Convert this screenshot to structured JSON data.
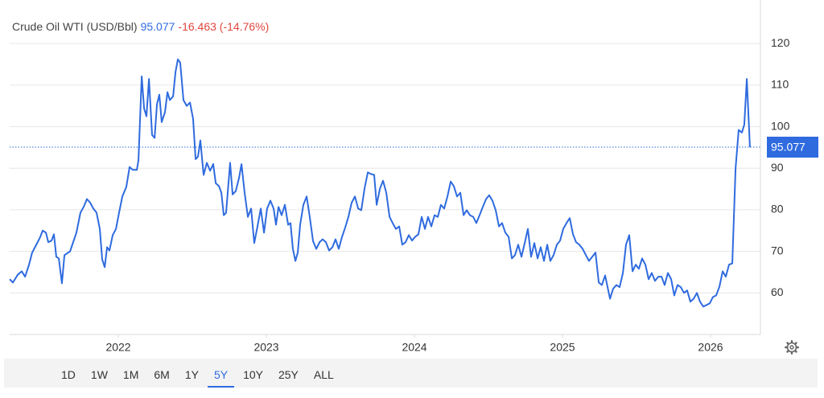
{
  "chart_data": {
    "type": "line",
    "header": {
      "name": "Crude Oil WTI (USD/Bbl)",
      "change": "-16.463 (-14.76%)"
    },
    "x": [
      2021.266,
      2021.288,
      2021.321,
      2021.348,
      2021.37,
      2021.397,
      2021.418,
      2021.446,
      2021.473,
      2021.489,
      2021.511,
      2021.527,
      2021.549,
      2021.565,
      2021.581,
      2021.598,
      2021.619,
      2021.636,
      2021.674,
      2021.717,
      2021.744,
      2021.766,
      2021.788,
      2021.81,
      2021.831,
      2021.853,
      2021.875,
      2021.891,
      2021.908,
      2021.924,
      2021.94,
      2021.962,
      2021.984,
      2022.005,
      2022.027,
      2022.054,
      2022.076,
      2022.098,
      2022.125,
      2022.136,
      2022.158,
      2022.174,
      2022.19,
      2022.207,
      2022.228,
      2022.245,
      2022.261,
      2022.277,
      2022.293,
      2022.315,
      2022.332,
      2022.348,
      2022.37,
      2022.386,
      2022.402,
      2022.418,
      2022.44,
      2022.462,
      2022.484,
      2022.505,
      2022.522,
      2022.538,
      2022.554,
      2022.576,
      2022.598,
      2022.62,
      2022.641,
      2022.658,
      2022.68,
      2022.696,
      2022.712,
      2022.728,
      2022.755,
      2022.772,
      2022.793,
      2022.815,
      2022.832,
      2022.853,
      2022.875,
      2022.897,
      2022.918,
      2022.94,
      2022.962,
      2022.984,
      2023.005,
      2023.027,
      2023.049,
      2023.065,
      2023.082,
      2023.103,
      2023.125,
      2023.147,
      2023.163,
      2023.179,
      2023.196,
      2023.212,
      2023.228,
      2023.25,
      2023.272,
      2023.293,
      2023.315,
      2023.337,
      2023.359,
      2023.38,
      2023.402,
      2023.424,
      2023.446,
      2023.467,
      2023.489,
      2023.511,
      2023.533,
      2023.554,
      2023.576,
      2023.598,
      2023.62,
      2023.641,
      2023.663,
      2023.685,
      2023.707,
      2023.728,
      2023.745,
      2023.767,
      2023.788,
      2023.81,
      2023.832,
      2023.853,
      2023.875,
      2023.897,
      2023.918,
      2023.94,
      2023.962,
      2023.984,
      2024.005,
      2024.027,
      2024.049,
      2024.071,
      2024.092,
      2024.114,
      2024.136,
      2024.158,
      2024.179,
      2024.201,
      2024.223,
      2024.245,
      2024.266,
      2024.288,
      2024.31,
      2024.332,
      2024.353,
      2024.375,
      2024.397,
      2024.418,
      2024.44,
      2024.462,
      2024.484,
      2024.505,
      2024.527,
      2024.549,
      2024.571,
      2024.592,
      2024.614,
      2024.636,
      2024.658,
      2024.679,
      2024.701,
      2024.723,
      2024.745,
      2024.766,
      2024.788,
      2024.81,
      2024.832,
      2024.853,
      2024.875,
      2024.897,
      2024.918,
      2024.94,
      2024.962,
      2024.984,
      2025.005,
      2025.027,
      2025.049,
      2025.071,
      2025.092,
      2025.114,
      2025.136,
      2025.158,
      2025.179,
      2025.201,
      2025.223,
      2025.245,
      2025.266,
      2025.288,
      2025.321,
      2025.342,
      2025.364,
      2025.386,
      2025.408,
      2025.429,
      2025.451,
      2025.473,
      2025.495,
      2025.516,
      2025.538,
      2025.56,
      2025.582,
      2025.603,
      2025.625,
      2025.647,
      2025.669,
      2025.69,
      2025.712,
      2025.734,
      2025.755,
      2025.777,
      2025.799,
      2025.821,
      2025.842,
      2025.864,
      2025.886,
      2025.908,
      2025.929,
      2025.951,
      2025.973,
      2025.995,
      2026.016,
      2026.038,
      2026.06,
      2026.082,
      2026.103,
      2026.125,
      2026.147,
      2026.169,
      2026.19,
      2026.212,
      2026.228,
      2026.245,
      2026.266
    ],
    "series": [
      {
        "name": "Crude Oil WTI",
        "color": "#2f6bdf",
        "values": [
          63.3,
          62.5,
          64.4,
          65.2,
          63.9,
          66.8,
          69.7,
          71.6,
          73.5,
          75,
          74.5,
          72.2,
          72.6,
          74.1,
          68.7,
          68.3,
          62.3,
          69.1,
          70,
          74.5,
          79.3,
          80.7,
          82.6,
          81.7,
          80.3,
          79.3,
          75.4,
          68.1,
          66.2,
          71,
          70.2,
          73.9,
          75.4,
          79.3,
          83.2,
          85.5,
          90.3,
          89.6,
          89.6,
          91.9,
          112.1,
          104.4,
          102.5,
          111.5,
          98,
          97.3,
          105.4,
          107.7,
          101.1,
          103.5,
          108.3,
          106.4,
          107.3,
          113.1,
          116.2,
          115.4,
          106.4,
          105,
          105.8,
          101.9,
          92.2,
          92.8,
          96.7,
          88.4,
          91.3,
          89.4,
          91,
          86.4,
          85.7,
          84.1,
          78.7,
          79.3,
          91.3,
          83.7,
          84.5,
          87.6,
          91,
          84.1,
          78.3,
          80.3,
          72,
          76,
          80.3,
          74.5,
          80.3,
          82.2,
          80.3,
          76.4,
          80.7,
          78.7,
          81.2,
          76.4,
          76.8,
          70.6,
          67.7,
          69.7,
          76.4,
          81.2,
          83.2,
          78.3,
          72.5,
          70.6,
          72.2,
          72.9,
          72.2,
          70.2,
          71,
          72.9,
          70.6,
          73.5,
          75.8,
          78.3,
          81.7,
          83.2,
          80.3,
          79.9,
          85.1,
          89,
          88.6,
          88.4,
          81.2,
          85.1,
          87,
          84.1,
          78.3,
          76.8,
          75.4,
          76,
          71.6,
          72.2,
          73.9,
          72.6,
          73.5,
          74.1,
          78.3,
          75.4,
          78.3,
          76,
          78.7,
          78.3,
          81.2,
          80.3,
          83.2,
          86.8,
          85.7,
          83.2,
          84.1,
          78.7,
          79.9,
          78.7,
          78.3,
          76.8,
          78.7,
          80.7,
          82.6,
          83.5,
          82.2,
          79.9,
          76,
          76.8,
          74.5,
          73.5,
          68.3,
          69.1,
          71.6,
          68.7,
          72,
          75.4,
          68.7,
          72,
          68.3,
          71,
          67.7,
          71.6,
          67.7,
          69.1,
          71.6,
          72.6,
          75.4,
          76.8,
          78,
          74.1,
          72.2,
          71.6,
          70.6,
          69.1,
          67.7,
          68.7,
          69.7,
          62.5,
          61.9,
          64.2,
          58.6,
          61,
          61.9,
          61.4,
          64.8,
          71.6,
          73.9,
          65.2,
          66.8,
          65.8,
          68.3,
          66.8,
          63.3,
          64.8,
          62.9,
          63.9,
          63.9,
          61.9,
          64.8,
          63.3,
          59.4,
          61.9,
          61.4,
          60,
          60.6,
          57.9,
          58.6,
          60,
          57.9,
          56.7,
          57.1,
          57.5,
          59,
          59.4,
          61.5,
          65.2,
          63.9,
          66.8,
          67.1,
          89.9,
          99.2,
          98.6,
          100.5,
          111.5,
          95.077
        ]
      }
    ],
    "xlim": [
      2021.266,
      2026.337
    ],
    "xticks": [
      2022,
      2023,
      2024,
      2025,
      2026
    ],
    "ylim": [
      50,
      127
    ],
    "yticks": [
      60,
      70,
      80,
      90,
      100,
      110,
      120
    ],
    "grid": true,
    "last_value_line": true,
    "ranges": [
      "1D",
      "1W",
      "1M",
      "6M",
      "1Y",
      "5Y",
      "10Y",
      "25Y",
      "ALL"
    ],
    "active_range": "5Y"
  }
}
